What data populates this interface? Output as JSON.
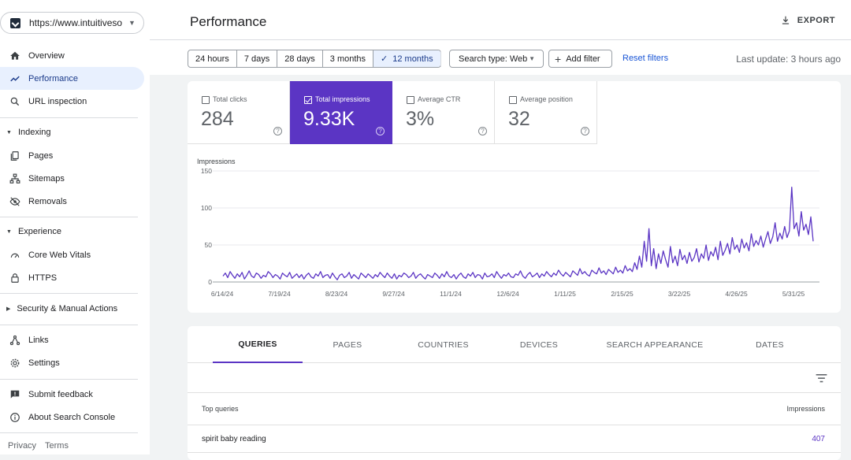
{
  "sidebar": {
    "property_url": "https://www.intuitiveso...",
    "items": [
      {
        "label": "Overview",
        "icon": "home-icon"
      },
      {
        "label": "Performance",
        "icon": "trending-icon",
        "active": true
      },
      {
        "label": "URL inspection",
        "icon": "search-icon"
      }
    ],
    "indexing": {
      "label": "Indexing",
      "items": [
        "Pages",
        "Sitemaps",
        "Removals"
      ]
    },
    "experience": {
      "label": "Experience",
      "items": [
        "Core Web Vitals",
        "HTTPS"
      ]
    },
    "security": {
      "label": "Security & Manual Actions"
    },
    "bottom_items": [
      "Links",
      "Settings"
    ],
    "help_items": [
      "Submit feedback",
      "About Search Console"
    ],
    "footer": {
      "privacy": "Privacy",
      "terms": "Terms"
    }
  },
  "header": {
    "title": "Performance",
    "export_label": "EXPORT"
  },
  "filters": {
    "ranges": [
      "24 hours",
      "7 days",
      "28 days",
      "3 months",
      "12 months"
    ],
    "selected_range": "12 months",
    "search_type": "Search type: Web",
    "add_filter": "Add filter",
    "reset": "Reset filters",
    "last_update": "Last update: 3 hours ago"
  },
  "metrics": [
    {
      "label": "Total clicks",
      "value": "284",
      "selected": false
    },
    {
      "label": "Total impressions",
      "value": "9.33K",
      "selected": true
    },
    {
      "label": "Average CTR",
      "value": "3%",
      "selected": false
    },
    {
      "label": "Average position",
      "value": "32",
      "selected": false
    }
  ],
  "chart_data": {
    "type": "line",
    "ylabel": "Impressions",
    "yticks": [
      0,
      50,
      100,
      150
    ],
    "ylim": [
      0,
      150
    ],
    "xticks": [
      "6/14/24",
      "7/19/24",
      "8/23/24",
      "9/27/24",
      "11/1/24",
      "12/6/24",
      "1/11/25",
      "2/15/25",
      "3/22/25",
      "4/26/25",
      "5/31/25"
    ],
    "color": "#5b35c4",
    "series": [
      {
        "values": [
          8,
          12,
          6,
          14,
          9,
          5,
          11,
          7,
          13,
          4,
          9,
          15,
          8,
          6,
          12,
          10,
          5,
          9,
          7,
          14,
          11,
          6,
          10,
          8,
          4,
          12,
          9,
          7,
          13,
          5,
          8,
          11,
          6,
          10,
          4,
          9,
          12,
          7,
          5,
          11,
          8,
          14,
          6,
          9,
          10,
          5,
          12,
          7,
          3,
          9,
          11,
          6,
          8,
          13,
          5,
          10,
          7,
          4,
          12,
          9,
          6,
          11,
          8,
          5,
          10,
          7,
          13,
          9,
          6,
          12,
          8,
          5,
          11,
          4,
          9,
          7,
          12,
          10,
          6,
          8,
          13,
          5,
          9,
          11,
          7,
          4,
          10,
          8,
          6,
          12,
          9,
          5,
          11,
          7,
          14,
          8,
          6,
          10,
          4,
          9,
          12,
          7,
          5,
          11,
          8,
          13,
          6,
          10,
          9,
          4,
          12,
          7,
          8,
          11,
          6,
          14,
          9,
          5,
          10,
          8,
          12,
          7,
          6,
          11,
          9,
          15,
          8,
          5,
          10,
          13,
          7,
          9,
          12,
          6,
          11,
          8,
          14,
          10,
          7,
          12,
          9,
          16,
          11,
          8,
          13,
          10,
          7,
          15,
          12,
          9,
          18,
          11,
          14,
          10,
          8,
          16,
          13,
          11,
          19,
          12,
          15,
          10,
          17,
          14,
          11,
          20,
          13,
          16,
          12,
          22,
          15,
          18,
          14,
          26,
          17,
          35,
          20,
          55,
          28,
          72,
          22,
          45,
          18,
          38,
          25,
          42,
          30,
          20,
          48,
          26,
          35,
          22,
          44,
          30,
          36,
          25,
          40,
          28,
          33,
          45,
          27,
          38,
          32,
          50,
          29,
          41,
          35,
          47,
          30,
          55,
          36,
          43,
          52,
          38,
          60,
          44,
          50,
          40,
          58,
          46,
          53,
          42,
          65,
          48,
          56,
          50,
          62,
          47,
          58,
          68,
          52,
          61,
          80,
          55,
          66,
          58,
          75,
          60,
          69,
          128,
          72,
          80,
          62,
          95,
          70,
          78,
          64,
          88,
          55
        ]
      }
    ]
  },
  "table": {
    "tabs": [
      "QUERIES",
      "PAGES",
      "COUNTRIES",
      "DEVICES",
      "SEARCH APPEARANCE",
      "DATES"
    ],
    "active_tab": "QUERIES",
    "columns": [
      "Top queries",
      "Impressions"
    ],
    "rows": [
      {
        "query": "spirit baby reading",
        "impressions": "407"
      }
    ]
  }
}
